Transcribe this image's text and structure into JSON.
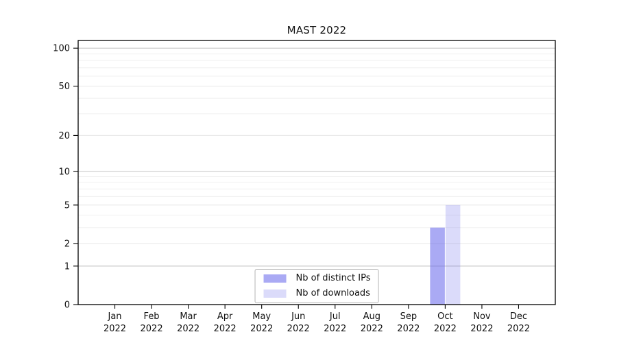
{
  "chart_data": {
    "type": "bar",
    "title": "MAST 2022",
    "categories": [
      "Jan 2022",
      "Feb 2022",
      "Mar 2022",
      "Apr 2022",
      "May 2022",
      "Jun 2022",
      "Jul 2022",
      "Aug 2022",
      "Sep 2022",
      "Oct 2022",
      "Nov 2022",
      "Dec 2022"
    ],
    "series": [
      {
        "name": "Nb of distinct IPs",
        "color": "rgba(100,100,235,0.55)",
        "values": [
          0,
          0,
          0,
          0,
          0,
          0,
          0,
          0,
          0,
          3,
          0,
          0
        ]
      },
      {
        "name": "Nb of downloads",
        "color": "rgba(100,100,235,0.23)",
        "values": [
          0,
          0,
          0,
          0,
          0,
          0,
          0,
          0,
          0,
          5,
          0,
          0
        ]
      }
    ],
    "xlabel": "",
    "ylabel": "",
    "ylim": [
      0,
      115
    ],
    "yscale": "log1p",
    "y_major_ticks": [
      0,
      1,
      2,
      5,
      10,
      20,
      50,
      100
    ],
    "y_minor_gridlines": [
      3,
      4,
      6,
      7,
      8,
      9,
      30,
      40,
      60,
      70,
      80,
      90
    ],
    "y_decade_gridlines": [
      1,
      10,
      100
    ],
    "grid": "horizontal",
    "legend_position": "inside-bottom-center",
    "colors": {
      "axis_frame": "#000000",
      "tick_text": "#111111",
      "grid_decade": "#cccccc",
      "grid_major": "#e7e7e7",
      "grid_minor": "#f0f0f0",
      "legend_border": "#b4b4b4",
      "background": "#ffffff"
    }
  }
}
